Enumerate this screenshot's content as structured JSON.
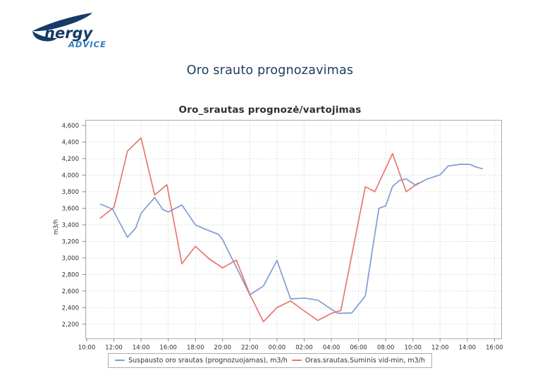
{
  "logo": {
    "brand_top": "nergy",
    "brand_bottom": "ADVICE",
    "color_dark": "#163B68",
    "color_light": "#2C7CC0"
  },
  "page": {
    "title": "Oro srauto prognozavimas"
  },
  "chart_data": {
    "type": "line",
    "title": "Oro_srautas prognozė/vartojimas",
    "ylabel": "m3/h",
    "ylim": [
      2020,
      4670
    ],
    "yticks": [
      2200,
      2400,
      2600,
      2800,
      3000,
      3200,
      3400,
      3600,
      3800,
      4000,
      4200,
      4400,
      4600
    ],
    "x_tick_labels": [
      "10:00",
      "12:00",
      "14:00",
      "16:00",
      "18:00",
      "20:00",
      "22:00",
      "00:00",
      "02:00",
      "04:00",
      "06:00",
      "08:00",
      "10:00",
      "12:00",
      "14:00",
      "16:00"
    ],
    "x_tick_step_hours": 2,
    "grid": "dotted",
    "legend_position": "bottom",
    "series": [
      {
        "name": "Suspausto oro srautas (prognozuojamas), m3/h",
        "color": "#7E9DD3",
        "points": [
          [
            1,
            3650
          ],
          [
            1.9,
            3590
          ],
          [
            3,
            3250
          ],
          [
            3.6,
            3360
          ],
          [
            4,
            3540
          ],
          [
            5,
            3730
          ],
          [
            5.6,
            3585
          ],
          [
            6,
            3555
          ],
          [
            7,
            3640
          ],
          [
            8,
            3400
          ],
          [
            8.6,
            3355
          ],
          [
            9.7,
            3285
          ],
          [
            10,
            3220
          ],
          [
            11,
            2890
          ],
          [
            12,
            2555
          ],
          [
            13,
            2660
          ],
          [
            14,
            2970
          ],
          [
            15,
            2505
          ],
          [
            16,
            2515
          ],
          [
            17,
            2490
          ],
          [
            18,
            2380
          ],
          [
            18.5,
            2330
          ],
          [
            19.5,
            2335
          ],
          [
            20.5,
            2540
          ],
          [
            21,
            3080
          ],
          [
            21.5,
            3600
          ],
          [
            22,
            3630
          ],
          [
            22.5,
            3865
          ],
          [
            23,
            3935
          ],
          [
            23.5,
            3955
          ],
          [
            24.2,
            3878
          ],
          [
            25,
            3950
          ],
          [
            26,
            4005
          ],
          [
            26.6,
            4110
          ],
          [
            27.5,
            4132
          ],
          [
            28.2,
            4130
          ],
          [
            28.6,
            4100
          ],
          [
            29.1,
            4078
          ]
        ]
      },
      {
        "name": "Oras.srautas.Suminis vid-min, m3/h",
        "color": "#E9766F",
        "points": [
          [
            1,
            3480
          ],
          [
            2,
            3610
          ],
          [
            3,
            4290
          ],
          [
            4,
            4450
          ],
          [
            5,
            3760
          ],
          [
            5.9,
            3885
          ],
          [
            7,
            2930
          ],
          [
            8,
            3140
          ],
          [
            9,
            2990
          ],
          [
            10,
            2880
          ],
          [
            11,
            2975
          ],
          [
            12,
            2560
          ],
          [
            13,
            2230
          ],
          [
            14,
            2400
          ],
          [
            15,
            2480
          ],
          [
            16,
            2360
          ],
          [
            17,
            2245
          ],
          [
            18,
            2330
          ],
          [
            18.7,
            2365
          ],
          [
            20.5,
            3860
          ],
          [
            21.2,
            3800
          ],
          [
            22.5,
            4260
          ],
          [
            23.5,
            3800
          ],
          [
            24.4,
            3905
          ]
        ]
      }
    ]
  }
}
